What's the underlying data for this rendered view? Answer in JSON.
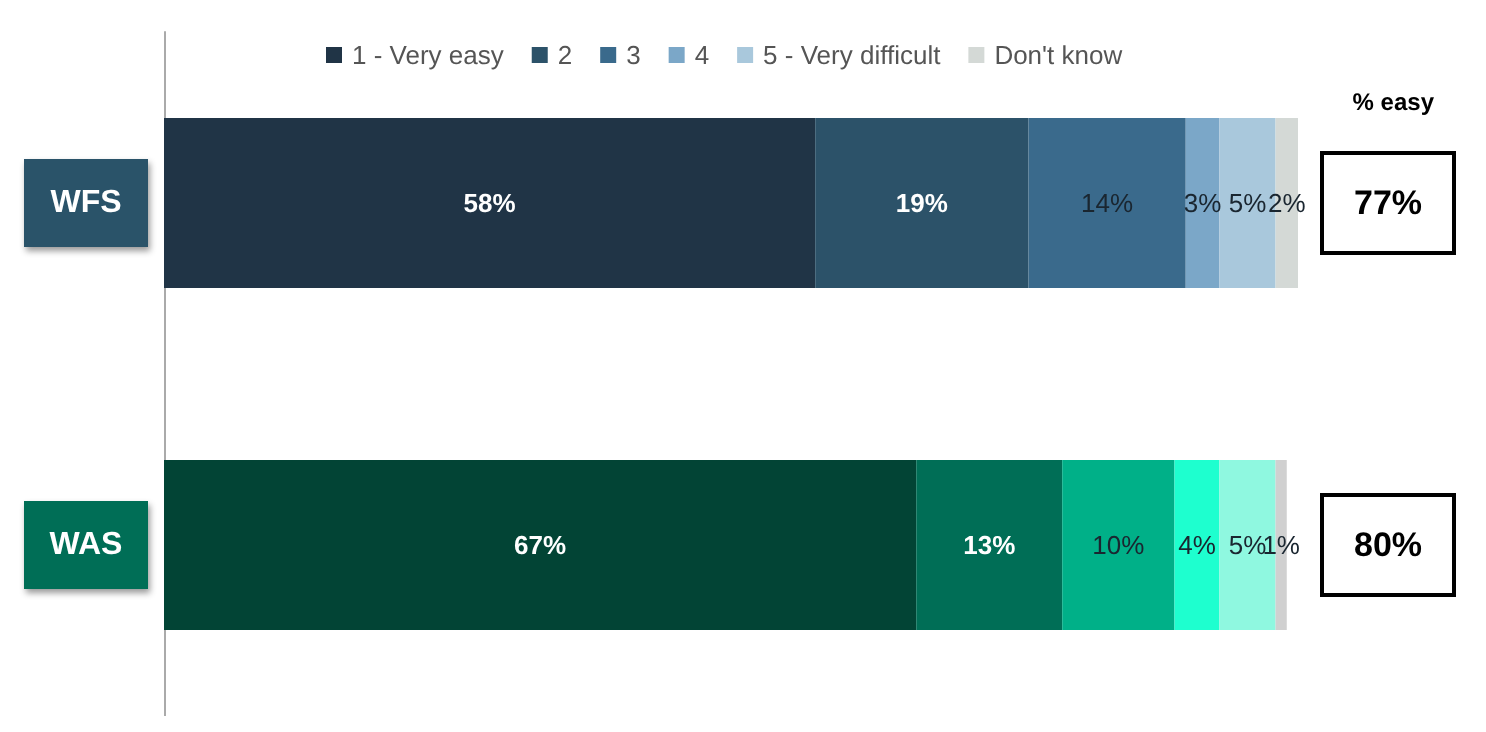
{
  "chart_data": {
    "type": "bar",
    "orientation": "horizontal",
    "stacked": true,
    "categories": [
      "WFS",
      "WAS"
    ],
    "legend": "top",
    "tick_labels": "y",
    "series": [
      {
        "name": "1 - Very easy",
        "colors": [
          "#203446",
          "#024435"
        ],
        "values": [
          58,
          67
        ],
        "value_labels": [
          "58%",
          "67%"
        ]
      },
      {
        "name": "2",
        "colors": [
          "#2c5269",
          "#006e56"
        ],
        "values": [
          19,
          13
        ],
        "value_labels": [
          "19%",
          "13%"
        ]
      },
      {
        "name": "3",
        "colors": [
          "#3a6a8c",
          "#00b088"
        ],
        "values": [
          14,
          10
        ],
        "value_labels": [
          "14%",
          "10%"
        ]
      },
      {
        "name": "4",
        "colors": [
          "#7ba7c8",
          "#1effcf"
        ],
        "values": [
          3,
          4
        ],
        "value_labels": [
          "3%",
          "4%"
        ]
      },
      {
        "name": "5 - Very difficult",
        "colors": [
          "#a9c8dc",
          "#8ff8e0"
        ],
        "values": [
          5,
          5
        ],
        "value_labels": [
          "5%",
          "5%"
        ]
      },
      {
        "name": "Don't know",
        "colors": [
          "#d4d9d6",
          "#d0d0d0"
        ],
        "values": [
          2,
          1
        ],
        "value_labels": [
          "2%",
          "1%"
        ]
      }
    ],
    "annotations": [
      "% easy",
      "77%",
      "80%"
    ]
  }
}
